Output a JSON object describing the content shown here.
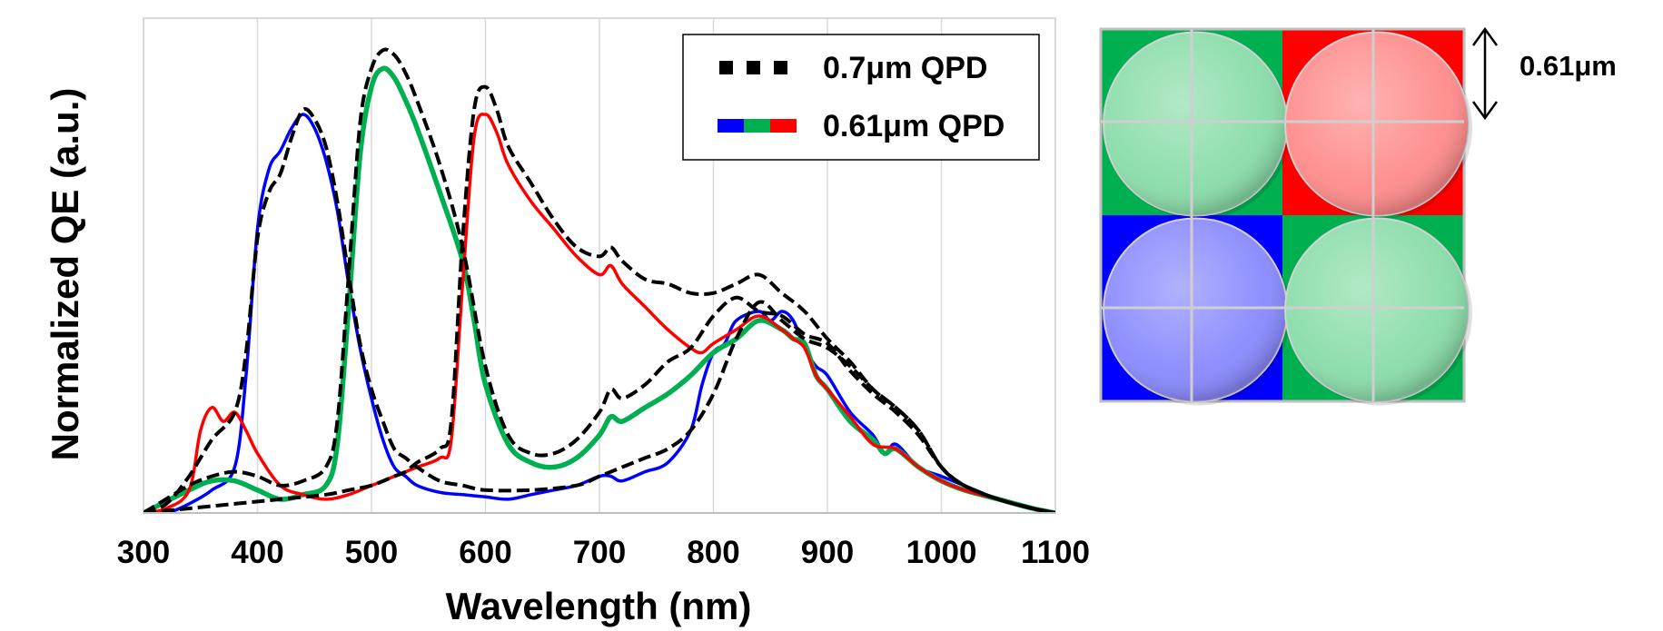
{
  "chart_data": {
    "type": "line",
    "xlabel": "Wavelength (nm)",
    "ylabel": "Normalized QE (a.u.)",
    "xlim": [
      300,
      1100
    ],
    "ylim": [
      0,
      1.08
    ],
    "x_ticks": [
      "300",
      "400",
      "500",
      "600",
      "700",
      "800",
      "900",
      "1000",
      "1100"
    ],
    "y_tick_labels": "none",
    "grid": "vertical",
    "legend_position": "top-right",
    "legend": [
      {
        "label": "0.7μm QPD",
        "style": "dashed",
        "colors": [
          "#000000"
        ]
      },
      {
        "label": "0.61μm QPD",
        "style": "solid",
        "colors": [
          "#0000ff",
          "#00b050",
          "#ff0000"
        ]
      }
    ],
    "series": [
      {
        "group": "0.61μm QPD",
        "channel": "blue",
        "color": "#0000ff",
        "style": "solid",
        "x": [
          300,
          320,
          340,
          360,
          380,
          390,
          400,
          410,
          420,
          430,
          440,
          450,
          460,
          470,
          480,
          490,
          500,
          510,
          520,
          530,
          540,
          560,
          580,
          600,
          620,
          640,
          660,
          680,
          700,
          710,
          720,
          740,
          760,
          780,
          790,
          800,
          810,
          820,
          840,
          850,
          860,
          870,
          880,
          890,
          900,
          920,
          940,
          950,
          960,
          980,
          1000,
          1020,
          1050,
          1080,
          1100
        ],
        "y": [
          0,
          0,
          0.02,
          0.05,
          0.1,
          0.3,
          0.62,
          0.75,
          0.79,
          0.84,
          0.87,
          0.84,
          0.77,
          0.66,
          0.5,
          0.36,
          0.25,
          0.16,
          0.1,
          0.08,
          0.06,
          0.045,
          0.04,
          0.035,
          0.03,
          0.04,
          0.05,
          0.06,
          0.08,
          0.08,
          0.07,
          0.09,
          0.11,
          0.18,
          0.28,
          0.35,
          0.37,
          0.42,
          0.44,
          0.42,
          0.44,
          0.42,
          0.36,
          0.32,
          0.3,
          0.22,
          0.17,
          0.13,
          0.15,
          0.1,
          0.08,
          0.06,
          0.03,
          0.01,
          0
        ]
      },
      {
        "group": "0.61μm QPD",
        "channel": "green",
        "color": "#00b050",
        "style": "solid",
        "x": [
          300,
          340,
          360,
          380,
          400,
          420,
          440,
          460,
          470,
          480,
          490,
          500,
          510,
          520,
          530,
          540,
          560,
          580,
          590,
          600,
          620,
          640,
          660,
          680,
          700,
          710,
          720,
          740,
          760,
          780,
          800,
          820,
          840,
          860,
          870,
          880,
          890,
          900,
          920,
          940,
          950,
          960,
          980,
          1000,
          1020,
          1050,
          1080,
          1100
        ],
        "y": [
          0,
          0.05,
          0.07,
          0.07,
          0.05,
          0.03,
          0.04,
          0.06,
          0.15,
          0.45,
          0.78,
          0.93,
          0.97,
          0.95,
          0.9,
          0.84,
          0.7,
          0.55,
          0.42,
          0.28,
          0.15,
          0.11,
          0.1,
          0.12,
          0.17,
          0.21,
          0.2,
          0.23,
          0.26,
          0.3,
          0.35,
          0.38,
          0.42,
          0.4,
          0.38,
          0.37,
          0.3,
          0.27,
          0.2,
          0.16,
          0.13,
          0.14,
          0.1,
          0.07,
          0.05,
          0.03,
          0.01,
          0
        ]
      },
      {
        "group": "0.61μm QPD",
        "channel": "red",
        "color": "#ff0000",
        "style": "solid",
        "x": [
          300,
          320,
          340,
          350,
          360,
          370,
          380,
          390,
          400,
          420,
          440,
          460,
          480,
          500,
          520,
          530,
          540,
          560,
          570,
          580,
          590,
          600,
          610,
          620,
          640,
          660,
          680,
          700,
          710,
          720,
          740,
          760,
          780,
          790,
          800,
          820,
          840,
          860,
          870,
          880,
          890,
          900,
          920,
          940,
          960,
          980,
          1000,
          1020,
          1050,
          1080,
          1100
        ],
        "y": [
          0,
          0.01,
          0.05,
          0.18,
          0.23,
          0.2,
          0.22,
          0.18,
          0.13,
          0.06,
          0.04,
          0.03,
          0.04,
          0.06,
          0.08,
          0.09,
          0.1,
          0.12,
          0.16,
          0.5,
          0.82,
          0.87,
          0.83,
          0.76,
          0.68,
          0.62,
          0.56,
          0.52,
          0.54,
          0.5,
          0.45,
          0.4,
          0.36,
          0.35,
          0.37,
          0.4,
          0.43,
          0.4,
          0.38,
          0.36,
          0.3,
          0.27,
          0.21,
          0.15,
          0.14,
          0.1,
          0.07,
          0.05,
          0.03,
          0.01,
          0
        ]
      },
      {
        "group": "0.7μm QPD",
        "channel": "blue",
        "color": "#000000",
        "style": "dashed",
        "x": [
          300,
          320,
          340,
          360,
          380,
          390,
          400,
          410,
          420,
          430,
          440,
          450,
          460,
          470,
          480,
          490,
          500,
          510,
          520,
          530,
          540,
          560,
          580,
          600,
          640,
          680,
          700,
          720,
          740,
          760,
          780,
          800,
          820,
          840,
          860,
          880,
          900,
          920,
          940,
          960,
          980,
          1000,
          1020,
          1050,
          1080,
          1100
        ],
        "y": [
          0,
          0.02,
          0.08,
          0.16,
          0.22,
          0.35,
          0.6,
          0.7,
          0.74,
          0.82,
          0.88,
          0.86,
          0.8,
          0.68,
          0.52,
          0.37,
          0.27,
          0.2,
          0.14,
          0.12,
          0.1,
          0.07,
          0.06,
          0.05,
          0.05,
          0.06,
          0.08,
          0.1,
          0.12,
          0.14,
          0.18,
          0.26,
          0.38,
          0.46,
          0.42,
          0.38,
          0.36,
          0.32,
          0.27,
          0.23,
          0.18,
          0.1,
          0.06,
          0.03,
          0.01,
          0
        ]
      },
      {
        "group": "0.7μm QPD",
        "channel": "green",
        "color": "#000000",
        "style": "dashed",
        "x": [
          300,
          340,
          360,
          380,
          400,
          420,
          440,
          460,
          470,
          480,
          490,
          500,
          510,
          520,
          530,
          540,
          560,
          580,
          600,
          620,
          640,
          660,
          680,
          700,
          710,
          720,
          740,
          760,
          780,
          800,
          820,
          840,
          860,
          880,
          900,
          920,
          940,
          960,
          980,
          1000,
          1020,
          1050,
          1080,
          1100
        ],
        "y": [
          0,
          0.06,
          0.08,
          0.09,
          0.08,
          0.06,
          0.07,
          0.1,
          0.2,
          0.52,
          0.85,
          0.97,
          1.01,
          1.0,
          0.96,
          0.9,
          0.76,
          0.58,
          0.32,
          0.17,
          0.13,
          0.13,
          0.16,
          0.22,
          0.27,
          0.25,
          0.28,
          0.33,
          0.36,
          0.43,
          0.47,
          0.44,
          0.43,
          0.39,
          0.37,
          0.31,
          0.26,
          0.22,
          0.17,
          0.1,
          0.06,
          0.03,
          0.01,
          0
        ]
      },
      {
        "group": "0.7μm QPD",
        "channel": "red",
        "color": "#000000",
        "style": "dashed",
        "x": [
          300,
          340,
          380,
          420,
          460,
          480,
          500,
          520,
          530,
          540,
          560,
          570,
          580,
          590,
          600,
          610,
          620,
          640,
          660,
          680,
          700,
          710,
          720,
          740,
          760,
          780,
          800,
          820,
          840,
          860,
          880,
          900,
          920,
          940,
          960,
          980,
          1000,
          1020,
          1050,
          1080,
          1100
        ],
        "y": [
          0,
          0.01,
          0.02,
          0.03,
          0.04,
          0.05,
          0.06,
          0.08,
          0.09,
          0.11,
          0.14,
          0.2,
          0.6,
          0.88,
          0.93,
          0.88,
          0.8,
          0.72,
          0.64,
          0.58,
          0.56,
          0.58,
          0.55,
          0.51,
          0.5,
          0.48,
          0.48,
          0.5,
          0.52,
          0.48,
          0.44,
          0.38,
          0.33,
          0.27,
          0.23,
          0.18,
          0.1,
          0.06,
          0.03,
          0.01,
          0
        ]
      }
    ]
  },
  "pixel_diagram": {
    "pitch_label": "0.61μm",
    "cells": [
      {
        "color": "#00b050",
        "lens_color": "#88dca8"
      },
      {
        "color": "#ff0000",
        "lens_color": "#ff8a8a"
      },
      {
        "color": "#0000ff",
        "lens_color": "#8888ff"
      },
      {
        "color": "#00b050",
        "lens_color": "#88dca8"
      }
    ]
  }
}
